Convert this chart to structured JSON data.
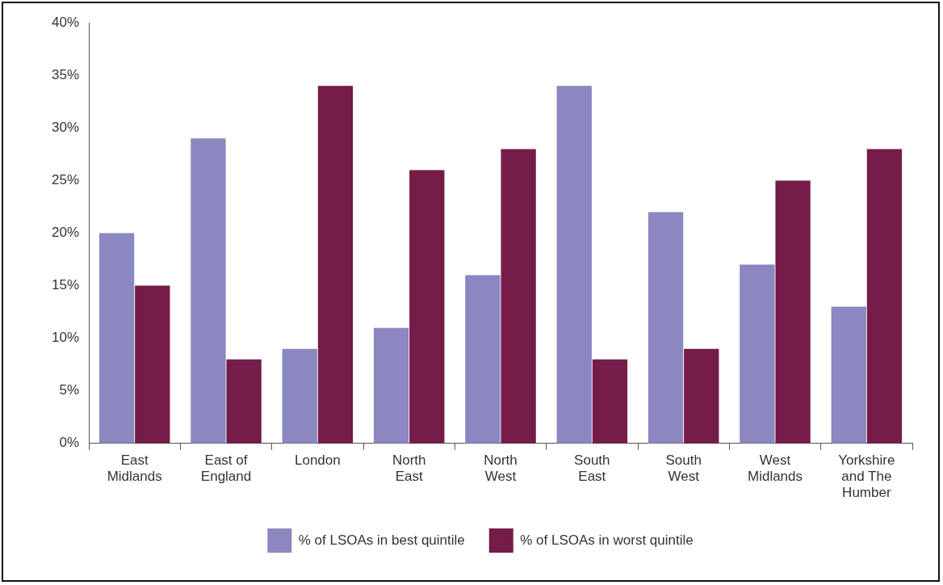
{
  "chart_data": {
    "type": "bar",
    "categories": [
      "East Midlands",
      "East of England",
      "London",
      "North East",
      "North West",
      "South East",
      "South West",
      "West Midlands",
      "Yorkshire and The Humber"
    ],
    "series": [
      {
        "name": "% of LSOAs in best quintile",
        "color": "#8b87c0",
        "values": [
          20,
          29,
          9,
          11,
          16,
          34,
          22,
          17,
          13
        ]
      },
      {
        "name": "% of LSOAs in worst quintile",
        "color": "#751c48",
        "values": [
          15,
          8,
          34,
          26,
          28,
          8,
          9,
          25,
          28
        ]
      }
    ],
    "ylim": [
      0,
      40
    ],
    "yticks": [
      {
        "value": 0,
        "label": "0%"
      },
      {
        "value": 5,
        "label": "5%"
      },
      {
        "value": 10,
        "label": "10%"
      },
      {
        "value": 15,
        "label": "15%"
      },
      {
        "value": 20,
        "label": "20%"
      },
      {
        "value": 25,
        "label": "25%"
      },
      {
        "value": 30,
        "label": "30%"
      },
      {
        "value": 35,
        "label": "35%"
      },
      {
        "value": 40,
        "label": "40%"
      }
    ],
    "grid": false,
    "legend": "bottom"
  }
}
